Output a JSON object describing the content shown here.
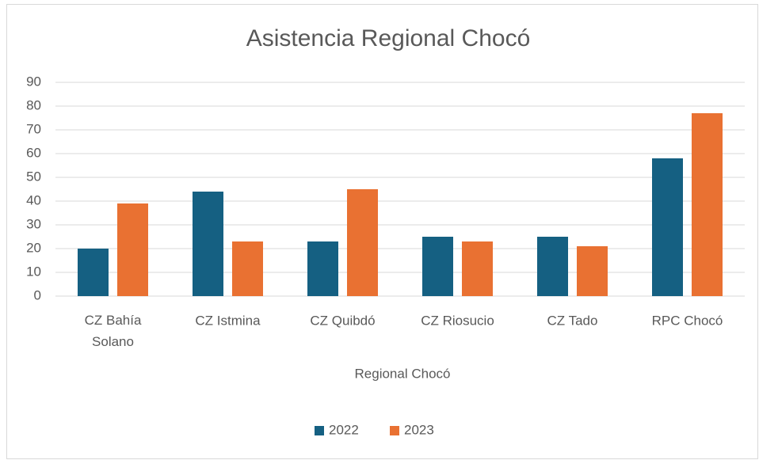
{
  "chart_data": {
    "type": "bar",
    "title": "Asistencia Regional Chocó",
    "categories": [
      "CZ Bahía Solano",
      "CZ Istmina",
      "CZ Quibdó",
      "CZ Riosucio",
      "CZ Tado",
      "RPC Chocó"
    ],
    "series": [
      {
        "name": "2022",
        "color": "#156082",
        "values": [
          20,
          44,
          23,
          25,
          25,
          58
        ]
      },
      {
        "name": "2023",
        "color": "#e97132",
        "values": [
          39,
          23,
          45,
          23,
          21,
          77
        ]
      }
    ],
    "xlabel": "Regional Chocó",
    "ylim": [
      0,
      90
    ],
    "yticks": [
      0,
      10,
      20,
      30,
      40,
      50,
      60,
      70,
      80,
      90
    ],
    "grid": true,
    "legend": "bottom"
  }
}
